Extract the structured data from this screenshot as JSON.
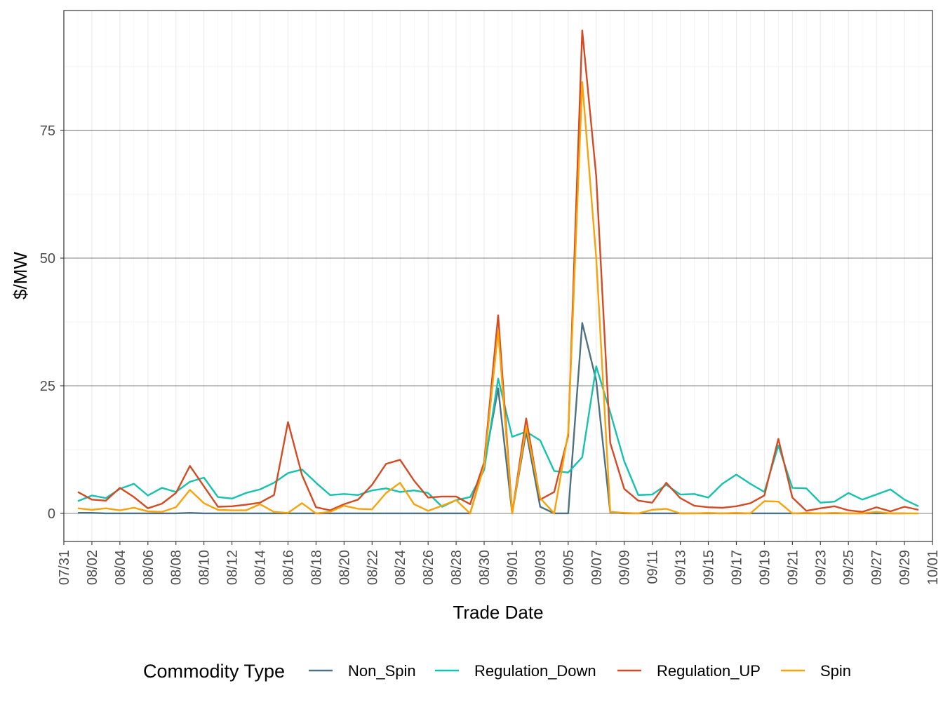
{
  "chart_data": {
    "type": "line",
    "xlabel": "Trade Date",
    "ylabel": "$/MW",
    "ylim": [
      -5.5,
      98.5
    ],
    "yticks": [
      0,
      25,
      50,
      75
    ],
    "x_domain": [
      "2023-07-31",
      "2023-10-01"
    ],
    "x_tick_labels": [
      "07/31",
      "08/02",
      "08/04",
      "08/06",
      "08/08",
      "08/10",
      "08/12",
      "08/14",
      "08/16",
      "08/18",
      "08/20",
      "08/22",
      "08/24",
      "08/26",
      "08/28",
      "08/30",
      "09/01",
      "09/03",
      "09/05",
      "09/07",
      "09/09",
      "09/11",
      "09/13",
      "09/15",
      "09/17",
      "09/19",
      "09/21",
      "09/23",
      "09/25",
      "09/27",
      "09/29",
      "10/01"
    ],
    "x_start": "2023-08-01",
    "grid": true,
    "legend": {
      "title": "Commodity Type",
      "position": "bottom"
    },
    "series": [
      {
        "name": "Non_Spin",
        "color": "#4f7282",
        "values": [
          0.1,
          0.1,
          0.0,
          0.0,
          0.0,
          0.0,
          0.0,
          0.0,
          0.1,
          0.0,
          0.0,
          0.0,
          0.0,
          0.0,
          0.0,
          0.0,
          0.0,
          0.0,
          0.0,
          0.0,
          0.0,
          0.0,
          0.0,
          0.0,
          0.0,
          0.0,
          0.0,
          0.0,
          0.0,
          9.5,
          24.5,
          0.0,
          16.0,
          1.3,
          0.0,
          0.0,
          37.3,
          26.0,
          0.2,
          0.0,
          0.0,
          0.0,
          0.0,
          0.0,
          0.0,
          0.0,
          0.0,
          0.0,
          0.0,
          0.0,
          0.0,
          0.0,
          0.0,
          0.0,
          0.0,
          0.0,
          0.0,
          0.0,
          0.0,
          0.0
        ]
      },
      {
        "name": "Regulation_Down",
        "color": "#14c2ad",
        "values": [
          2.4,
          3.5,
          3.0,
          4.8,
          5.8,
          3.5,
          5.0,
          4.2,
          6.2,
          7.0,
          3.2,
          2.9,
          4.0,
          4.7,
          6.0,
          7.9,
          8.6,
          6.0,
          3.6,
          3.8,
          3.6,
          4.5,
          4.9,
          4.2,
          4.5,
          4.0,
          1.3,
          2.6,
          3.2,
          8.5,
          26.4,
          15.0,
          16.0,
          14.3,
          8.3,
          8.0,
          11.0,
          28.8,
          19.8,
          10.2,
          3.6,
          3.7,
          5.6,
          3.7,
          3.8,
          3.1,
          5.8,
          7.6,
          5.8,
          4.2,
          13.3,
          5.0,
          4.9,
          2.1,
          2.3,
          4.0,
          2.7,
          3.7,
          4.7,
          2.7,
          1.4
        ]
      },
      {
        "name": "Regulation_UP",
        "color": "#d44a22",
        "values": [
          4.2,
          2.7,
          2.5,
          5.0,
          3.2,
          1.0,
          1.9,
          4.0,
          9.3,
          5.3,
          1.3,
          1.4,
          1.7,
          2.1,
          3.6,
          17.9,
          7.5,
          1.2,
          0.6,
          1.8,
          2.7,
          5.6,
          9.7,
          10.5,
          6.4,
          3.1,
          3.3,
          3.3,
          1.8,
          10.0,
          38.8,
          0.0,
          18.6,
          2.7,
          4.2,
          15.2,
          94.6,
          66.0,
          13.8,
          4.8,
          2.5,
          2.1,
          6.0,
          3.0,
          1.5,
          1.2,
          1.1,
          1.4,
          2.0,
          3.5,
          14.6,
          3.1,
          0.5,
          1.0,
          1.4,
          0.6,
          0.3,
          1.2,
          0.4,
          1.3,
          0.7
        ]
      },
      {
        "name": "Spin",
        "color": "#f7a309",
        "values": [
          1.0,
          0.7,
          1.0,
          0.6,
          1.1,
          0.4,
          0.3,
          1.2,
          4.6,
          2.0,
          0.7,
          0.6,
          0.6,
          1.8,
          0.3,
          0.1,
          2.0,
          0.0,
          0.3,
          1.5,
          0.9,
          0.8,
          4.0,
          6.0,
          1.8,
          0.5,
          1.5,
          2.6,
          0.0,
          9.3,
          35.8,
          0.0,
          17.0,
          3.0,
          0.0,
          15.8,
          84.5,
          50.0,
          0.3,
          0.1,
          0.0,
          0.7,
          0.9,
          0.0,
          0.0,
          0.1,
          0.0,
          0.1,
          0.0,
          2.4,
          2.3,
          0.0,
          0.1,
          0.0,
          0.1,
          0.0,
          0.0,
          0.3,
          0.0,
          0.0,
          0.0
        ]
      }
    ]
  }
}
